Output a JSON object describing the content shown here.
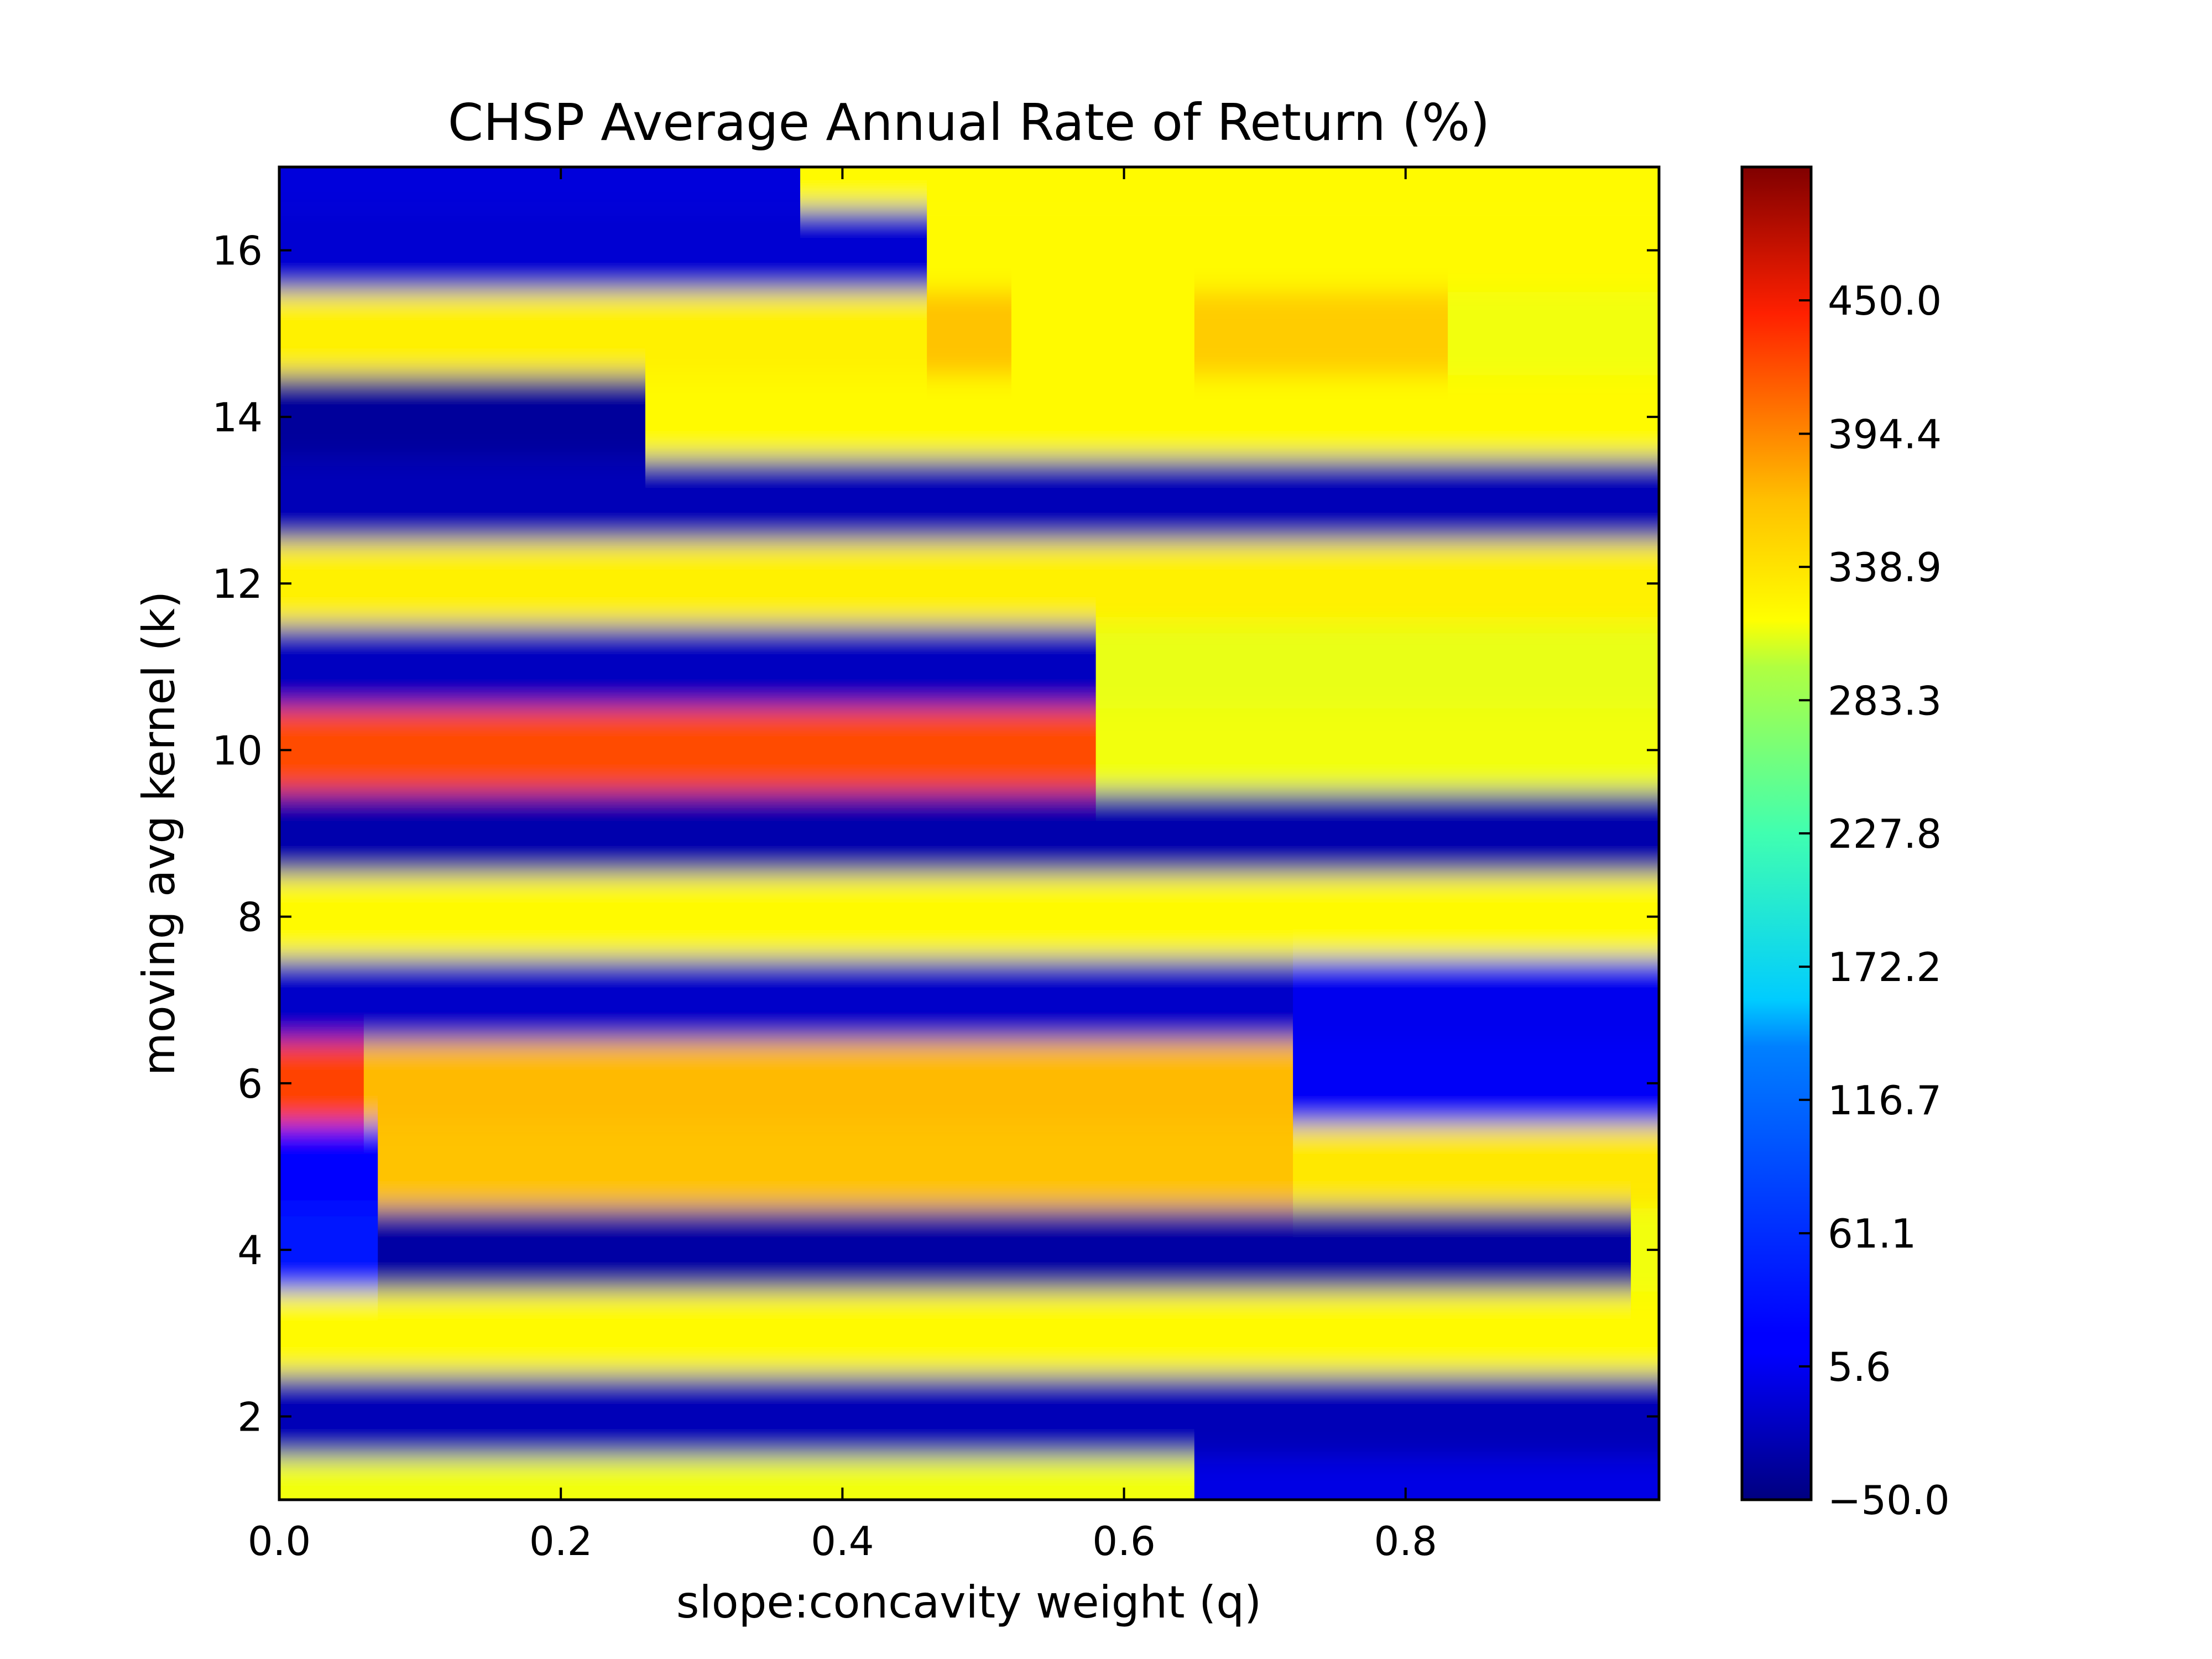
{
  "chart_data": {
    "type": "heatmap",
    "title": "CHSP Average Annual Rate of Return (%)",
    "xlabel": "slope:concavity weight (q)",
    "ylabel": "moving avg kernel (k)",
    "xlim": [
      0.0,
      0.98
    ],
    "ylim": [
      1,
      17
    ],
    "xticks": [
      "0.0",
      "0.2",
      "0.4",
      "0.6",
      "0.8"
    ],
    "yticks": [
      "2",
      "4",
      "6",
      "8",
      "10",
      "12",
      "14",
      "16"
    ],
    "colormap": "jet",
    "colorbar": {
      "range": [
        -50.0,
        505.6
      ],
      "ticks": [
        "−50.0",
        "5.6",
        "61.1",
        "116.7",
        "172.2",
        "227.8",
        "283.3",
        "338.9",
        "394.4",
        "450.0"
      ]
    },
    "grid": false,
    "k_levels": [
      1,
      2,
      3,
      4,
      5,
      6,
      7,
      8,
      9,
      10,
      11,
      12,
      13,
      14,
      15,
      16,
      17
    ],
    "rows": [
      {
        "k": 1,
        "segments": [
          {
            "q_max": 0.65,
            "value": 290
          },
          {
            "q_max": 0.98,
            "value": 5
          }
        ]
      },
      {
        "k": 2,
        "segments": [
          {
            "q_max": 0.98,
            "value": -20
          }
        ]
      },
      {
        "k": 3,
        "segments": [
          {
            "q_max": 0.98,
            "value": 300
          }
        ]
      },
      {
        "k": 4,
        "segments": [
          {
            "q_max": 0.07,
            "value": 30
          },
          {
            "q_max": 0.96,
            "value": -30
          },
          {
            "q_max": 0.98,
            "value": 290
          }
        ]
      },
      {
        "k": 5,
        "segments": [
          {
            "q_max": 0.07,
            "value": 20
          },
          {
            "q_max": 0.72,
            "value": 330
          },
          {
            "q_max": 0.98,
            "value": 310
          }
        ]
      },
      {
        "k": 6,
        "segments": [
          {
            "q_max": 0.06,
            "value": 400
          },
          {
            "q_max": 0.72,
            "value": 335
          },
          {
            "q_max": 0.98,
            "value": 15
          }
        ]
      },
      {
        "k": 7,
        "segments": [
          {
            "q_max": 0.72,
            "value": -10
          },
          {
            "q_max": 0.98,
            "value": 10
          }
        ]
      },
      {
        "k": 8,
        "segments": [
          {
            "q_max": 0.98,
            "value": 300
          }
        ]
      },
      {
        "k": 9,
        "segments": [
          {
            "q_max": 0.98,
            "value": -25
          }
        ]
      },
      {
        "k": 10,
        "segments": [
          {
            "q_max": 0.58,
            "value": 395
          },
          {
            "q_max": 0.98,
            "value": 290
          }
        ]
      },
      {
        "k": 11,
        "segments": [
          {
            "q_max": 0.58,
            "value": -15
          },
          {
            "q_max": 0.98,
            "value": 285
          }
        ]
      },
      {
        "k": 12,
        "segments": [
          {
            "q_max": 0.98,
            "value": 305
          }
        ]
      },
      {
        "k": 13,
        "segments": [
          {
            "q_max": 0.98,
            "value": -20
          }
        ]
      },
      {
        "k": 14,
        "segments": [
          {
            "q_max": 0.26,
            "value": -35
          },
          {
            "q_max": 0.98,
            "value": 300
          }
        ]
      },
      {
        "k": 15,
        "segments": [
          {
            "q_max": 0.46,
            "value": 305
          },
          {
            "q_max": 0.52,
            "value": 330
          },
          {
            "q_max": 0.65,
            "value": 300
          },
          {
            "q_max": 0.83,
            "value": 325
          },
          {
            "q_max": 0.98,
            "value": 290
          }
        ]
      },
      {
        "k": 16,
        "segments": [
          {
            "q_max": 0.46,
            "value": -5
          },
          {
            "q_max": 0.98,
            "value": 300
          }
        ]
      },
      {
        "k": 17,
        "segments": [
          {
            "q_max": 0.37,
            "value": 0
          },
          {
            "q_max": 0.98,
            "value": 300
          }
        ]
      }
    ]
  }
}
